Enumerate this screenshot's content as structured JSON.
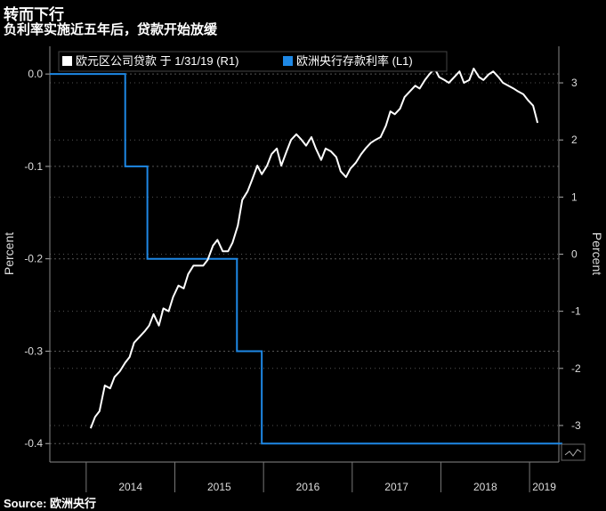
{
  "header": {
    "title": "转而下行",
    "subtitle": "负利率实施近五年后，贷款开始放缓"
  },
  "source": "Source: 欧洲央行",
  "colors": {
    "loans": "#ffffff",
    "deposit_rate": "#1e88e5",
    "grid": "#555555",
    "background": "#000000"
  },
  "chart_data": {
    "type": "line",
    "xlabel": "",
    "x_ticks": [
      "2014",
      "2015",
      "2016",
      "2017",
      "2018",
      "2019"
    ],
    "left_axis": {
      "label": "Percent",
      "ylim": [
        -0.42,
        0.03
      ],
      "ticks": [
        "0.0",
        "-0.1",
        "-0.2",
        "-0.3",
        "-0.4"
      ]
    },
    "right_axis": {
      "label": "Percent",
      "ylim": [
        -3.64,
        3.64
      ],
      "ticks": [
        "3",
        "2",
        "1",
        "0",
        "-1",
        "-2",
        "-3"
      ]
    },
    "legend": {
      "placement": "top-left"
    },
    "series": [
      {
        "name": "欧元区公司贷款 于 1/31/19 (R1)",
        "axis": "right",
        "x": [
          2014.05,
          2014.1,
          2014.15,
          2014.21,
          2014.27,
          2014.32,
          2014.38,
          2014.44,
          2014.49,
          2014.54,
          2014.6,
          2014.66,
          2014.71,
          2014.76,
          2014.82,
          2014.87,
          2014.93,
          2014.98,
          2015.04,
          2015.1,
          2015.15,
          2015.21,
          2015.26,
          2015.32,
          2015.37,
          2015.43,
          2015.48,
          2015.54,
          2015.6,
          2015.65,
          2015.71,
          2015.76,
          2015.82,
          2015.87,
          2015.93,
          2015.98,
          2016.04,
          2016.09,
          2016.15,
          2016.2,
          2016.26,
          2016.31,
          2016.37,
          2016.43,
          2016.48,
          2016.54,
          2016.59,
          2016.65,
          2016.7,
          2016.76,
          2016.82,
          2016.87,
          2016.93,
          2016.98,
          2017.04,
          2017.1,
          2017.15,
          2017.21,
          2017.26,
          2017.32,
          2017.38,
          2017.43,
          2017.48,
          2017.54,
          2017.59,
          2017.65,
          2017.71,
          2017.76,
          2017.82,
          2017.87,
          2017.93,
          2017.98,
          2018.04,
          2018.09,
          2018.15,
          2018.21,
          2018.26,
          2018.32,
          2018.37,
          2018.43,
          2018.48,
          2018.54,
          2018.59,
          2018.65,
          2018.7,
          2018.76,
          2018.82,
          2018.87,
          2018.93,
          2018.98,
          2019.04,
          2019.09
        ],
        "values": [
          -3.05,
          -2.85,
          -2.75,
          -2.3,
          -2.35,
          -2.15,
          -2.05,
          -1.9,
          -1.8,
          -1.55,
          -1.45,
          -1.35,
          -1.25,
          -1.05,
          -1.25,
          -0.95,
          -1.0,
          -0.75,
          -0.55,
          -0.6,
          -0.35,
          -0.2,
          -0.2,
          -0.2,
          -0.1,
          0.15,
          0.25,
          0.05,
          0.05,
          0.2,
          0.5,
          0.95,
          1.1,
          1.3,
          1.55,
          1.4,
          1.55,
          1.75,
          1.85,
          1.55,
          1.8,
          2.0,
          2.1,
          2.0,
          1.9,
          2.05,
          1.85,
          1.65,
          1.85,
          1.8,
          1.7,
          1.45,
          1.35,
          1.5,
          1.6,
          1.75,
          1.85,
          1.95,
          2.0,
          2.05,
          2.25,
          2.5,
          2.45,
          2.55,
          2.75,
          2.85,
          2.95,
          2.9,
          3.05,
          3.15,
          3.25,
          3.1,
          3.05,
          3.0,
          3.1,
          3.2,
          3.0,
          3.05,
          3.25,
          3.1,
          3.05,
          3.15,
          3.2,
          3.1,
          3.0,
          2.95,
          2.9,
          2.85,
          2.8,
          2.7,
          2.6,
          2.3
        ]
      },
      {
        "name": "欧洲央行存款利率 (L1)",
        "axis": "left",
        "step": true,
        "x": [
          2013.59,
          2014.44,
          2014.69,
          2015.7,
          2015.98,
          2019.37
        ],
        "values": [
          0.0,
          -0.1,
          -0.2,
          -0.3,
          -0.4,
          -0.4
        ]
      }
    ]
  }
}
